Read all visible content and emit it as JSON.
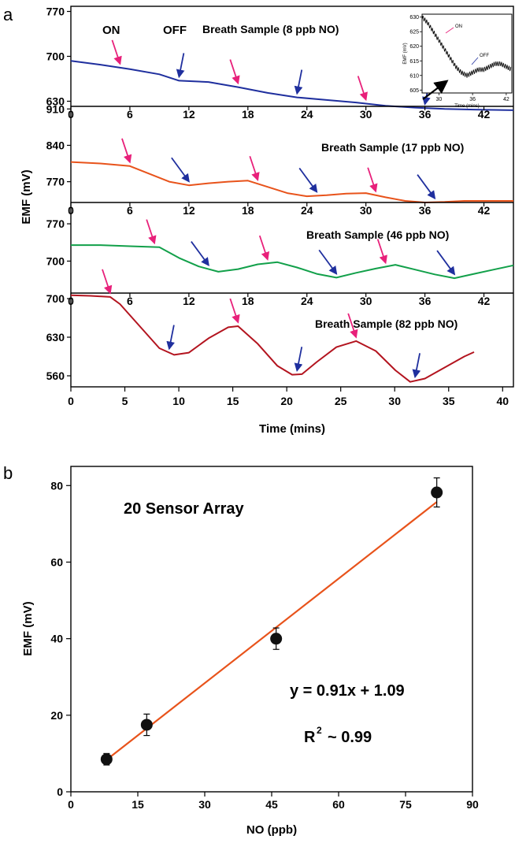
{
  "panels": [
    {
      "letter": "a"
    },
    {
      "letter": "b"
    }
  ],
  "chart_data": [
    {
      "type": "line",
      "panel": "a",
      "xlabel": "Time (mins)",
      "ylabel": "EMF (mV)",
      "x_ticks": [
        "0",
        "5",
        "10",
        "15",
        "20",
        "25",
        "30",
        "35",
        "40"
      ],
      "top_axis_ticks": [
        "0",
        "6",
        "12",
        "18",
        "24",
        "30",
        "36",
        "42"
      ],
      "on_label": "ON",
      "off_label": "OFF",
      "series": [
        {
          "name": "Breath Sample (8 ppb NO)",
          "color": "#1f2f9e",
          "y_ticks": [
            "770",
            "700",
            "630"
          ],
          "ylim": [
            622,
            778
          ],
          "xlim": [
            0,
            45
          ],
          "x": [
            0,
            3,
            6,
            9,
            11,
            14,
            17,
            20,
            23,
            26,
            29,
            32,
            35,
            38,
            41,
            45
          ],
          "y": [
            693,
            687,
            680,
            672,
            662,
            660,
            652,
            643,
            636,
            632,
            628,
            623,
            620,
            618,
            617,
            616
          ],
          "on_x": [
            5,
            17,
            30
          ],
          "off_x": [
            11,
            23,
            36
          ],
          "inset": {
            "xlabel": "Time (mins)",
            "ylabel": "EMF (mV)",
            "x_ticks": [
              "30",
              "36",
              "42"
            ],
            "y_ticks": [
              "630",
              "625",
              "620",
              "615",
              "610",
              "605"
            ],
            "xlim": [
              27,
              43
            ],
            "ylim": [
              604,
              631
            ],
            "x": [
              27,
              28,
              29,
              30,
              31,
              32,
              33,
              34,
              35,
              36,
              37,
              38,
              39,
              40,
              41,
              42,
              43
            ],
            "y": [
              630,
              628,
              625,
              622,
              619,
              616,
              613,
              611,
              610,
              611,
              612,
              612,
              613,
              614,
              614,
              613,
              612
            ],
            "on_label": "ON",
            "off_label": "OFF"
          }
        },
        {
          "name": "Breath Sample (17 ppb NO)",
          "color": "#e8531b",
          "y_ticks": [
            "910",
            "840",
            "770"
          ],
          "ylim": [
            730,
            915
          ],
          "xlim": [
            0,
            45
          ],
          "x": [
            0,
            3,
            6,
            8,
            10,
            12,
            14,
            16,
            18,
            20,
            22,
            24,
            26,
            28,
            30,
            32,
            34,
            36,
            38,
            40,
            42,
            45
          ],
          "y": [
            808,
            805,
            800,
            785,
            770,
            763,
            767,
            770,
            772,
            760,
            748,
            742,
            744,
            747,
            748,
            740,
            733,
            730,
            731,
            733,
            733,
            733
          ],
          "on_x": [
            6,
            19,
            31
          ],
          "off_x": [
            12,
            25,
            37
          ]
        },
        {
          "name": "Breath Sample (46 ppb NO)",
          "color": "#12a04a",
          "y_ticks": [
            "770",
            "700"
          ],
          "ylim": [
            640,
            810
          ],
          "xlim": [
            0,
            45
          ],
          "x": [
            0,
            3,
            6,
            9,
            11,
            13,
            15,
            17,
            19,
            21,
            23,
            25,
            27,
            29,
            31,
            33,
            35,
            37,
            39,
            41,
            43,
            45
          ],
          "y": [
            730,
            730,
            728,
            726,
            706,
            690,
            680,
            685,
            694,
            698,
            688,
            676,
            669,
            678,
            686,
            693,
            684,
            675,
            668,
            676,
            684,
            692
          ],
          "on_x": [
            8.5,
            20,
            32
          ],
          "off_x": [
            14,
            27,
            39
          ]
        },
        {
          "name": "Breath Sample (82 ppb NO)",
          "color": "#b3141f",
          "y_ticks": [
            "700",
            "630",
            "560"
          ],
          "ylim": [
            540,
            710
          ],
          "xlim": [
            0,
            45
          ],
          "x": [
            0,
            2,
            4,
            5,
            7,
            9,
            10.5,
            12,
            14,
            16,
            17,
            19,
            21,
            22.5,
            23.5,
            25,
            27,
            29,
            31,
            33,
            34.5,
            36,
            38,
            40,
            41
          ],
          "y": [
            706,
            705,
            703,
            690,
            650,
            610,
            598,
            602,
            628,
            648,
            650,
            618,
            578,
            562,
            563,
            585,
            612,
            623,
            605,
            570,
            549,
            555,
            575,
            595,
            603
          ],
          "on_x": [
            4,
            17,
            29
          ],
          "off_x": [
            10,
            23,
            35
          ]
        }
      ]
    },
    {
      "type": "scatter",
      "panel": "b",
      "title": "20 Sensor Array",
      "xlabel": "NO (ppb)",
      "ylabel": "EMF (mV)",
      "xlim": [
        0,
        90
      ],
      "ylim": [
        0,
        85
      ],
      "x_ticks": [
        "0",
        "15",
        "30",
        "45",
        "60",
        "75",
        "90"
      ],
      "y_ticks": [
        "0",
        "20",
        "40",
        "60",
        "80"
      ],
      "points": [
        {
          "x": 8,
          "y": 8.5,
          "err": 1.5
        },
        {
          "x": 17,
          "y": 17.5,
          "err": 2.8
        },
        {
          "x": 46,
          "y": 40,
          "err": 2.8
        },
        {
          "x": 82,
          "y": 78.2,
          "err": 3.8
        }
      ],
      "fit": {
        "slope": 0.91,
        "intercept": 1.09,
        "x_range": [
          8,
          82
        ],
        "color": "#e8531b"
      },
      "equation": "y = 0.91x + 1.09",
      "r2_label": "R",
      "r2_sup": "2",
      "r2_value": "~ 0.99"
    }
  ]
}
